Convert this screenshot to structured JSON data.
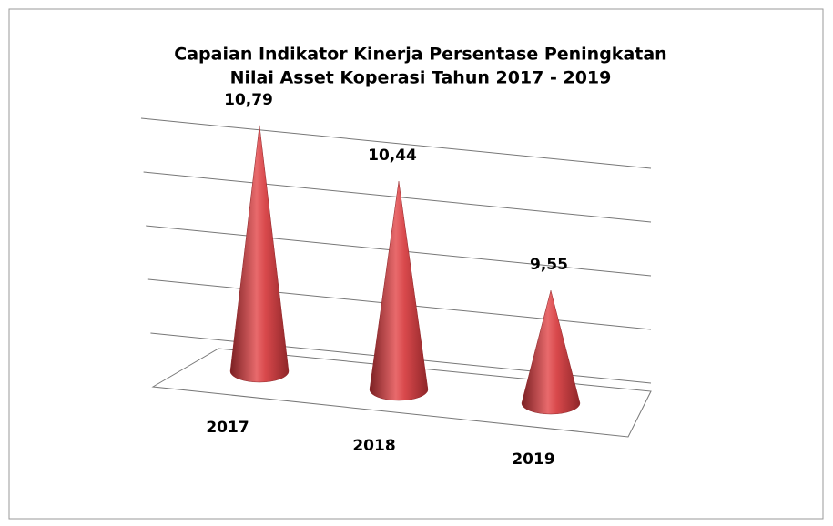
{
  "chart_data": {
    "type": "cone",
    "title": [
      "Capaian Indikator Kinerja Persentase Peningkatan",
      "Nilai Asset Koperasi Tahun 2017 - 2019"
    ],
    "categories": [
      "2017",
      "2018",
      "2019"
    ],
    "values": [
      10.79,
      10.44,
      9.55
    ],
    "value_labels": [
      "10,79",
      "10,44",
      "9,55"
    ],
    "color": "#c0393b",
    "ylim": [
      8.5,
      11
    ],
    "yticks": [
      8.5,
      9,
      9.5,
      10,
      10.5,
      11
    ],
    "grid": true
  }
}
